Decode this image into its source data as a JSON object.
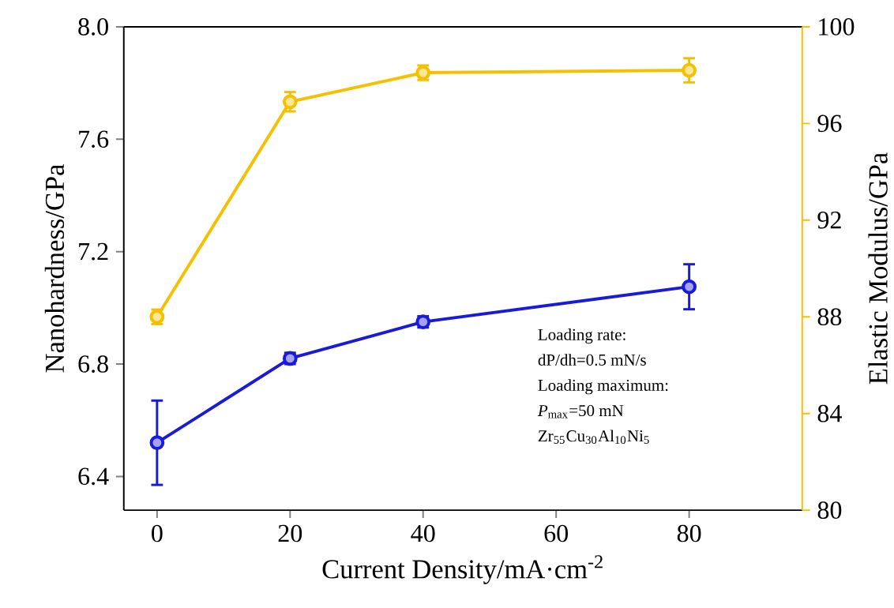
{
  "chart_data": {
    "type": "line",
    "xlabel": "Current Density/mA·cm$^{-2}$",
    "ylabel": "Nanohardness/GPa",
    "y2label": "Elastic Modulus/GPa",
    "x": [
      0,
      20,
      40,
      80
    ],
    "series": [
      {
        "color": "#1a1adb",
        "values": [
          6.52,
          6.82,
          6.95,
          7.075
        ],
        "errors": [
          0.15,
          0.02,
          0.02,
          0.08
        ]
      },
      {
        "color": "#f5c000",
        "axis": "y2",
        "values": [
          88.0,
          96.9,
          98.1,
          98.2
        ],
        "errors": [
          0.3,
          0.4,
          0.3,
          0.5
        ]
      }
    ],
    "xlim": [
      -5,
      97
    ],
    "xticks": [
      0,
      20,
      40,
      60,
      80
    ],
    "ylim": [
      6.28,
      8.0
    ],
    "yticks": [
      6.4,
      6.8,
      7.2,
      7.6,
      {
        "value": 8,
        "label": "8.0"
      }
    ],
    "y2lim": [
      80,
      100
    ],
    "y2ticks": [
      80,
      84,
      88,
      92,
      96,
      100
    ],
    "marker": "circle",
    "line_style": "solid",
    "annotations": [
      "Loading rate:",
      "dP/dh=0.5 mN/s",
      "Loading maximum:",
      "*P*$_{max}$=50 mN",
      "Zr$_{55}$Cu$_{30}$Al$_{10}$Ni$_{5}$"
    ]
  }
}
